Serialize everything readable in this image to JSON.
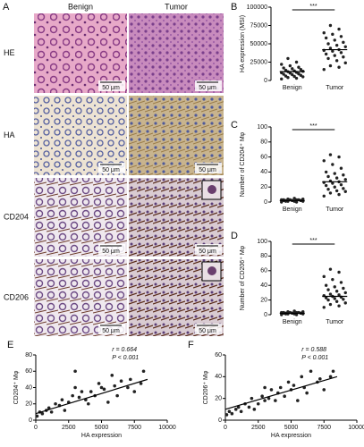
{
  "panel_a": {
    "letter": "A",
    "columns": [
      "Benign",
      "Tumor"
    ],
    "rows": [
      "HE",
      "HA",
      "CD204",
      "CD206"
    ],
    "scale_bar": "50 μm"
  },
  "chart_data": [
    {
      "type": "strip",
      "panel": "B",
      "y_label": "HA expression (MSI)",
      "categories": [
        "Benign",
        "Tumor"
      ],
      "values": [
        [
          2000,
          3000,
          4000,
          5000,
          5500,
          6000,
          7000,
          8000,
          8500,
          9000,
          10000,
          10500,
          11000,
          12000,
          12500,
          13000,
          14000,
          15000,
          16000,
          17000,
          18000,
          20000,
          22000,
          25000,
          30000
        ],
        [
          15000,
          18000,
          20000,
          24000,
          27000,
          30000,
          32000,
          34000,
          36000,
          38000,
          40000,
          41000,
          42000,
          44000,
          46000,
          48000,
          50000,
          52000,
          55000,
          58000,
          60000,
          63000,
          65000,
          70000,
          75000
        ]
      ],
      "means": [
        12000,
        42000
      ],
      "significance": "***",
      "color": "#222222",
      "ylim": [
        0,
        100000
      ],
      "yticks": [
        0,
        25000,
        50000,
        75000,
        100000
      ]
    },
    {
      "type": "strip",
      "panel": "C",
      "y_label": "Number of CD204⁺ Mφ",
      "categories": [
        "Benign",
        "Tumor"
      ],
      "values": [
        [
          0,
          0,
          1,
          1,
          1,
          2,
          2,
          2,
          2,
          3,
          3,
          3,
          3,
          4,
          4,
          5,
          1,
          2,
          2,
          3
        ],
        [
          8,
          10,
          12,
          14,
          15,
          17,
          18,
          20,
          22,
          23,
          25,
          26,
          27,
          28,
          30,
          32,
          34,
          36,
          38,
          40,
          45,
          50,
          55,
          60,
          63
        ]
      ],
      "means": [
        2,
        27
      ],
      "significance": "***",
      "color": "#222222",
      "ylim": [
        0,
        100
      ],
      "yticks": [
        0,
        20,
        40,
        60,
        80,
        100
      ]
    },
    {
      "type": "strip",
      "panel": "D",
      "y_label": "Number of CD206⁺ Mφ",
      "categories": [
        "Benign",
        "Tumor"
      ],
      "values": [
        [
          0,
          0,
          1,
          1,
          1,
          2,
          2,
          2,
          2,
          3,
          3,
          3,
          3,
          4,
          4,
          5,
          1,
          2,
          2,
          3
        ],
        [
          10,
          12,
          14,
          16,
          18,
          20,
          21,
          22,
          23,
          24,
          25,
          26,
          27,
          28,
          30,
          32,
          34,
          36,
          38,
          40,
          44,
          48,
          52,
          58,
          62
        ]
      ],
      "means": [
        2,
        25
      ],
      "significance": "***",
      "color": "#222222",
      "ylim": [
        0,
        100
      ],
      "yticks": [
        0,
        20,
        40,
        60,
        80,
        100
      ]
    },
    {
      "type": "scatter",
      "panel": "E",
      "x_label": "HA expression",
      "y_label": "CD204⁺ Mφ",
      "annotations": [
        "r = 0.664",
        "P < 0.001"
      ],
      "color": "#222222",
      "x": [
        100,
        300,
        500,
        800,
        1000,
        1200,
        1500,
        1800,
        2000,
        2200,
        2500,
        2800,
        3000,
        3000,
        3300,
        3500,
        3800,
        4000,
        4200,
        4500,
        4800,
        5000,
        5200,
        5500,
        5800,
        6000,
        6200,
        6500,
        7000,
        7200,
        7500,
        8000,
        8200
      ],
      "values": [
        5,
        10,
        8,
        12,
        15,
        10,
        20,
        18,
        25,
        12,
        22,
        30,
        60,
        40,
        28,
        35,
        25,
        20,
        35,
        30,
        45,
        40,
        38,
        22,
        55,
        42,
        30,
        48,
        40,
        50,
        35,
        45,
        60
      ],
      "fit_line": {
        "x": [
          0,
          8500
        ],
        "y": [
          8,
          50
        ]
      },
      "xlim": [
        0,
        10000
      ],
      "xticks": [
        0,
        2500,
        5000,
        7500,
        10000
      ],
      "ylim": [
        0,
        80
      ],
      "yticks": [
        0,
        20,
        40,
        60,
        80
      ]
    },
    {
      "type": "scatter",
      "panel": "F",
      "x_label": "HA expression",
      "y_label": "CD206⁺ Mφ",
      "annotations": [
        "r = 0.588",
        "P < 0.001"
      ],
      "color": "#222222",
      "x": [
        100,
        300,
        500,
        800,
        1000,
        1200,
        1500,
        1800,
        2000,
        2200,
        2500,
        2800,
        3000,
        3000,
        3300,
        3500,
        3800,
        4000,
        4200,
        4500,
        4800,
        5000,
        5200,
        5500,
        5800,
        6000,
        6200,
        6500,
        7000,
        7200,
        7500,
        8000,
        8200
      ],
      "values": [
        5,
        8,
        6,
        10,
        12,
        8,
        15,
        12,
        20,
        10,
        15,
        22,
        18,
        30,
        20,
        28,
        18,
        25,
        30,
        22,
        35,
        28,
        32,
        18,
        40,
        30,
        25,
        45,
        35,
        38,
        28,
        40,
        45
      ],
      "fit_line": {
        "x": [
          0,
          8500
        ],
        "y": [
          10,
          40
        ]
      },
      "xlim": [
        0,
        10000
      ],
      "xticks": [
        0,
        2500,
        5000,
        7500,
        10000
      ],
      "ylim": [
        0,
        60
      ],
      "yticks": [
        0,
        20,
        40,
        60
      ]
    }
  ]
}
